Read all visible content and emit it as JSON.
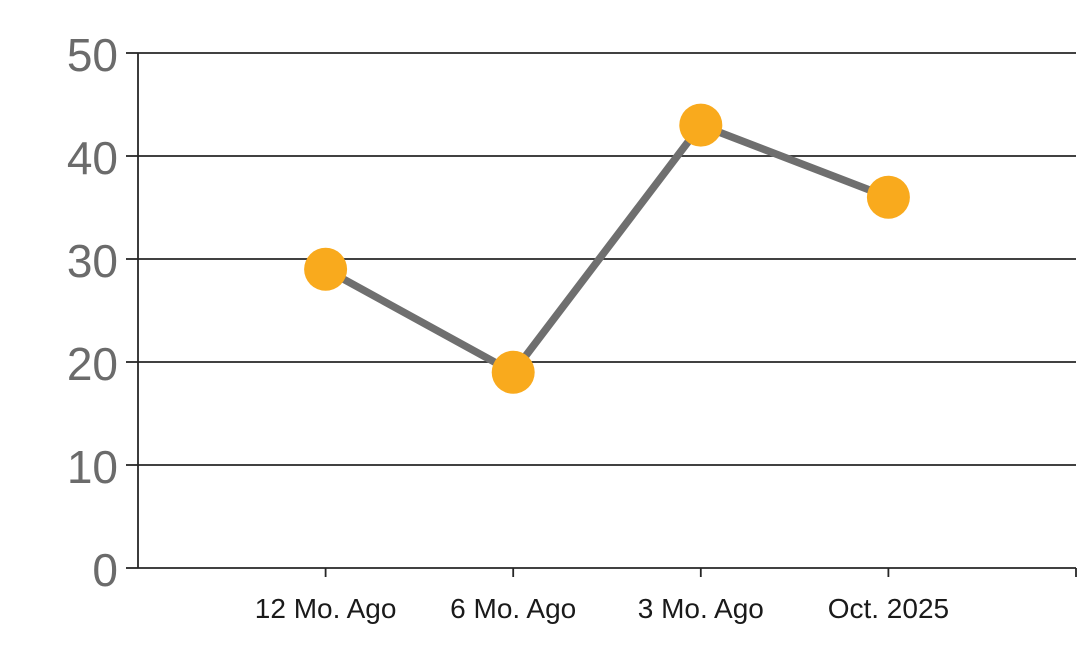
{
  "chart_data": {
    "type": "line",
    "categories": [
      "12 Mo. Ago",
      "6 Mo. Ago",
      "3 Mo. Ago",
      "Oct. 2025"
    ],
    "values": [
      29,
      19,
      43,
      36
    ],
    "title": "",
    "xlabel": "",
    "ylabel": "",
    "ylim": [
      0,
      50
    ],
    "ytick_interval": 10,
    "ytick_labels": [
      "0",
      "10",
      "20",
      "30",
      "40",
      "50"
    ],
    "grid": true,
    "legend": false,
    "colors": {
      "marker": "#F9AA1D",
      "line": "#6F6F6F",
      "grid": "#262626",
      "axis": "#262626",
      "y_label_text": "#6B6B6B",
      "x_label_text": "#1A1A1A",
      "background": "#FFFFFF"
    }
  }
}
